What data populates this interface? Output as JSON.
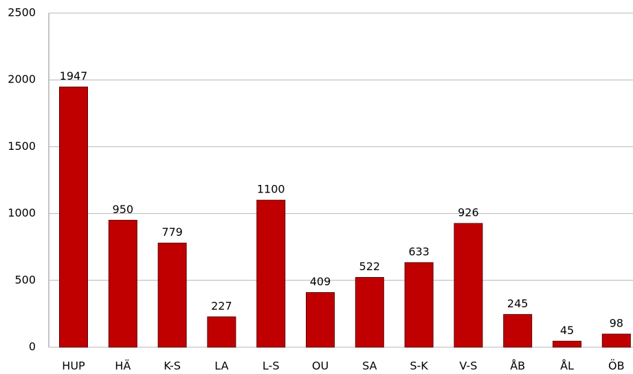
{
  "chart_data": {
    "type": "bar",
    "categories": [
      "HUP",
      "HÄ",
      "K-S",
      "LA",
      "L-S",
      "OU",
      "SA",
      "S-K",
      "V-S",
      "ÅB",
      "ÅL",
      "ÖB"
    ],
    "values": [
      1947,
      950,
      779,
      227,
      1100,
      409,
      522,
      633,
      926,
      245,
      45,
      98
    ],
    "color": "#c00000",
    "ylim": [
      0,
      2500
    ],
    "yticks": [
      0,
      500,
      1000,
      1500,
      2000,
      2500
    ],
    "grid": true
  }
}
